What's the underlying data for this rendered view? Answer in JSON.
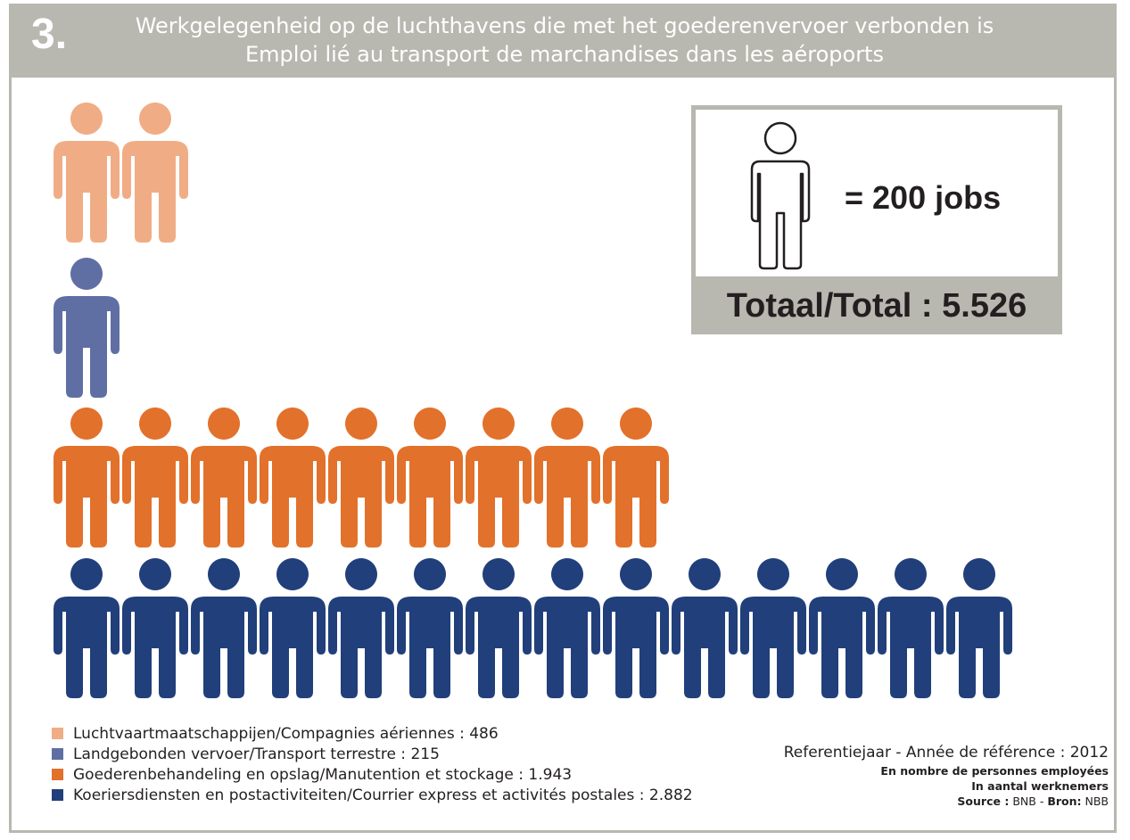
{
  "header": {
    "number": "3.",
    "title_nl": "Werkgelegenheid op de luchthavens die met het goederenvervoer verbonden is",
    "title_fr": "Emploi lié au transport de marchandises dans les aéroports"
  },
  "key": {
    "icon": "person-icon",
    "text": "= 200 jobs",
    "unit": 200,
    "total_label": "Totaal/Total : 5.526"
  },
  "legend": [
    {
      "label": "Luchtvaartmaatschappijen/Compagnies aériennes : 486",
      "color": "#f0ad85"
    },
    {
      "label": "Landgebonden vervoer/Transport terrestre : 215",
      "color": "#5f6fa3"
    },
    {
      "label": "Goederenbehandeling en opslag/Manutention et stockage : 1.943",
      "color": "#e2712b"
    },
    {
      "label": "Koeriersdiensten en postactiviteiten/Courrier express et activités postales : 2.882",
      "color": "#213f7a"
    }
  ],
  "source": {
    "ref_line": "Referentiejaar - Année de référence : 2012",
    "unit_fr": "En nombre de personnes employées",
    "unit_nl": "In aantal werknemers",
    "source_label": "Source :",
    "source_fr": "BNB",
    "sep": "-",
    "bron_label": "Bron:",
    "source_nl": "NBB"
  },
  "chart_data": {
    "type": "pictogram",
    "unit_per_icon": 200,
    "categories": [
      "Luchtvaartmaatschappijen/Compagnies aériennes",
      "Landgebonden vervoer/Transport terrestre",
      "Goederenbehandeling en opslag/Manutention et stockage",
      "Koeriersdiensten en postactiviteiten/Courrier express et activités postales"
    ],
    "values": [
      486,
      215,
      1943,
      2882
    ],
    "colors": [
      "#f0ad85",
      "#5f6fa3",
      "#e2712b",
      "#213f7a"
    ],
    "total": 5526
  }
}
